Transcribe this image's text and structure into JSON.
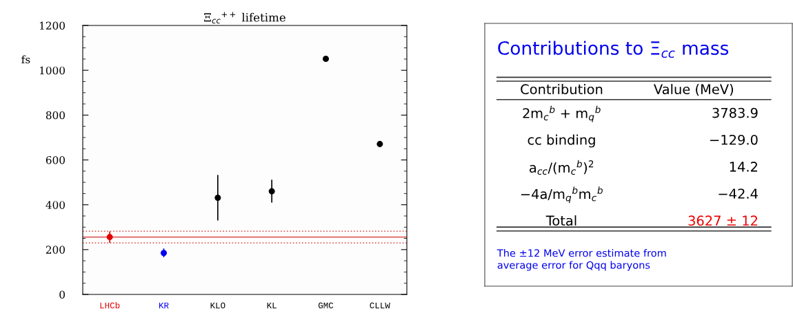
{
  "chart_data": [
    {
      "type": "scatter",
      "title": "Ξ$_{cc}$$^{++}$ lifetime",
      "ylabel": "fs",
      "categories": [
        "LHCb",
        "KR",
        "KLO",
        "KL",
        "GMC",
        "CLLW"
      ],
      "values": [
        256,
        185,
        431,
        460,
        1051,
        671
      ],
      "errors": [
        [
          230,
          281
        ],
        [
          166,
          205
        ],
        [
          330,
          533
        ],
        [
          410,
          512
        ],
        null,
        null
      ],
      "colors": [
        "#e00000",
        "#0000ee",
        "#000000",
        "#000000",
        "#000000",
        "#000000"
      ],
      "marker": "circle",
      "grid": false,
      "ylim": [
        0,
        1200
      ],
      "yticks": [
        0,
        {
          "value": 50,
          "label": null
        },
        {
          "value": 100,
          "label": null
        },
        {
          "value": 150,
          "label": null
        },
        200,
        {
          "value": 250,
          "label": null
        },
        {
          "value": 300,
          "label": null
        },
        {
          "value": 350,
          "label": null
        },
        400,
        {
          "value": 450,
          "label": null
        },
        {
          "value": 500,
          "label": null
        },
        {
          "value": 550,
          "label": null
        },
        600,
        {
          "value": 650,
          "label": null
        },
        {
          "value": 700,
          "label": null
        },
        {
          "value": 750,
          "label": null
        },
        800,
        {
          "value": 850,
          "label": null
        },
        {
          "value": 900,
          "label": null
        },
        {
          "value": 950,
          "label": null
        },
        1000,
        {
          "value": 1050,
          "label": null
        },
        {
          "value": 1100,
          "label": null
        },
        {
          "value": 1150,
          "label": null
        },
        1200
      ],
      "ref_lines": [
        {
          "axis": "y",
          "value": 256,
          "color": "#e06060",
          "line_style": "solid"
        },
        {
          "axis": "y",
          "value": 282,
          "color": "#e06060",
          "line_style": "dotted"
        },
        {
          "axis": "y",
          "value": 230,
          "color": "#e06060",
          "line_style": "dotted"
        }
      ]
    },
    {
      "type": "other",
      "title": "Contributions to Ξ$_{cc}$ mass",
      "categories": [
        "Contribution",
        "Value (MeV)"
      ],
      "y_categories": [
        "2m$_{c}$$^{b}$ + m$_{q}$$^{b}$",
        "cc binding",
        "a$_{cc}$/(m$_{c}$$^{b}$)$^{2}$",
        "−4a/m$_{q}$$^{b}$m$_{c}$$^{b}$",
        "Total"
      ],
      "cell_labels": [
        [
          "3783.9"
        ],
        [
          "−129.0"
        ],
        [
          "14.2"
        ],
        [
          "−42.4"
        ],
        [
          "3627 ± 12"
        ]
      ],
      "colors": [
        "#000000",
        "#000000",
        "#000000",
        "#000000",
        "#ee0000"
      ],
      "annotations": [
        "The ±12 MeV error estimate from\naverage error for Qqq baryons"
      ]
    }
  ]
}
